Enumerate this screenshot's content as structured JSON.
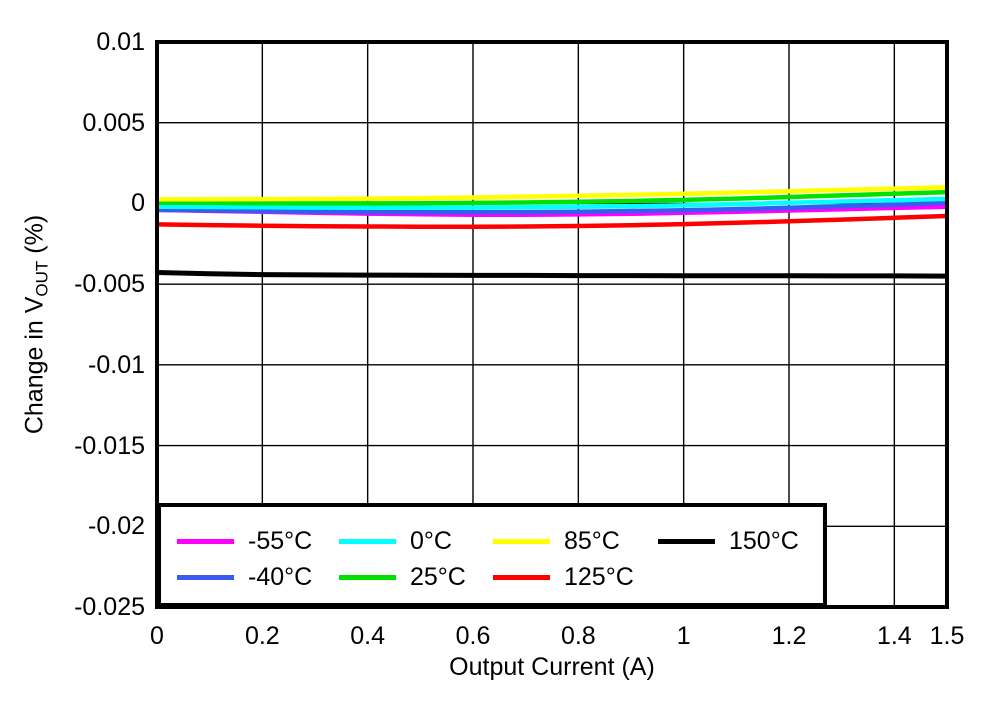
{
  "figure": {
    "x_axis_title": "Output Current (A)",
    "y_axis_title": {
      "pre": "Change in V",
      "sub": "OUT",
      "post": " (%)"
    }
  },
  "chart_data": {
    "type": "line",
    "title": "",
    "xlabel": "Output Current (A)",
    "ylabel": "Change in VOUT (%)",
    "xlim": [
      0,
      1.5
    ],
    "ylim": [
      -0.025,
      0.01
    ],
    "grid": true,
    "legend_position": "lower-left",
    "background": "#ffffff",
    "axis_color": "#000000",
    "x_ticks": [
      {
        "v": 0,
        "label": "0"
      },
      {
        "v": 0.2,
        "label": "0.2"
      },
      {
        "v": 0.4,
        "label": "0.4"
      },
      {
        "v": 0.6,
        "label": "0.6"
      },
      {
        "v": 0.8,
        "label": "0.8"
      },
      {
        "v": 1,
        "label": "1"
      },
      {
        "v": 1.2,
        "label": "1.2"
      },
      {
        "v": 1.4,
        "label": "1.4"
      },
      {
        "v": 1.5,
        "label": "1.5"
      }
    ],
    "y_ticks": [
      {
        "v": 0.01,
        "label": "0.01"
      },
      {
        "v": 0.005,
        "label": "0.005"
      },
      {
        "v": 0,
        "label": "0"
      },
      {
        "v": -0.005,
        "label": "-0.005"
      },
      {
        "v": -0.01,
        "label": "-0.01"
      },
      {
        "v": -0.015,
        "label": "-0.015"
      },
      {
        "v": -0.02,
        "label": "-0.02"
      },
      {
        "v": -0.025,
        "label": "-0.025"
      }
    ],
    "x": [
      0,
      0.1,
      0.2,
      0.3,
      0.4,
      0.5,
      0.6,
      0.7,
      0.8,
      0.9,
      1.0,
      1.1,
      1.2,
      1.3,
      1.4,
      1.5
    ],
    "series": [
      {
        "name": "-55°C",
        "color": "#FF00FF",
        "values": [
          -0.0004,
          -0.00046,
          -0.00052,
          -0.00058,
          -0.00063,
          -0.00067,
          -0.0007,
          -0.0007,
          -0.00068,
          -0.00064,
          -0.00058,
          -0.00051,
          -0.00044,
          -0.00036,
          -0.00028,
          -0.0002
        ]
      },
      {
        "name": "-40°C",
        "color": "#3A5BF0",
        "values": [
          -0.0004,
          -0.00044,
          -0.00048,
          -0.00051,
          -0.00053,
          -0.00055,
          -0.00055,
          -0.00054,
          -0.00051,
          -0.00047,
          -0.00042,
          -0.00035,
          -0.00027,
          -0.00018,
          -8e-05,
          5e-05
        ]
      },
      {
        "name": "0°C",
        "color": "#00FFFF",
        "values": [
          -0.0002,
          -0.00022,
          -0.00024,
          -0.00026,
          -0.00027,
          -0.00027,
          -0.00026,
          -0.00024,
          -0.00021,
          -0.00017,
          -0.00012,
          -4e-05,
          4e-05,
          0.00012,
          0.0002,
          0.00028
        ]
      },
      {
        "name": "25°C",
        "color": "#00E100",
        "values": [
          5e-05,
          3e-05,
          1e-05,
          0.0,
          0.0,
          1e-05,
          3e-05,
          6e-05,
          0.0001,
          0.00015,
          0.00022,
          0.0003,
          0.0004,
          0.0005,
          0.0006,
          0.0007
        ]
      },
      {
        "name": "85°C",
        "color": "#FFFF00",
        "values": [
          0.00026,
          0.00026,
          0.00027,
          0.00028,
          0.0003,
          0.00033,
          0.00037,
          0.00042,
          0.00047,
          0.00053,
          0.0006,
          0.00068,
          0.00076,
          0.00084,
          0.00092,
          0.001
        ]
      },
      {
        "name": "125°C",
        "color": "#FF0000",
        "values": [
          -0.0013,
          -0.00134,
          -0.00138,
          -0.00141,
          -0.00143,
          -0.00144,
          -0.00144,
          -0.00143,
          -0.0014,
          -0.00135,
          -0.00128,
          -0.0012,
          -0.00111,
          -0.001,
          -0.00089,
          -0.00078
        ]
      },
      {
        "name": "150°C",
        "color": "#000000",
        "values": [
          -0.00428,
          -0.00436,
          -0.00441,
          -0.00443,
          -0.00444,
          -0.00445,
          -0.00446,
          -0.00446,
          -0.00447,
          -0.00447,
          -0.00448,
          -0.00448,
          -0.00448,
          -0.00449,
          -0.00449,
          -0.0045
        ]
      }
    ],
    "legend_rows": [
      [
        "-55°C",
        "0°C",
        "85°C",
        "150°C"
      ],
      [
        "-40°C",
        "25°C",
        "125°C"
      ]
    ]
  }
}
